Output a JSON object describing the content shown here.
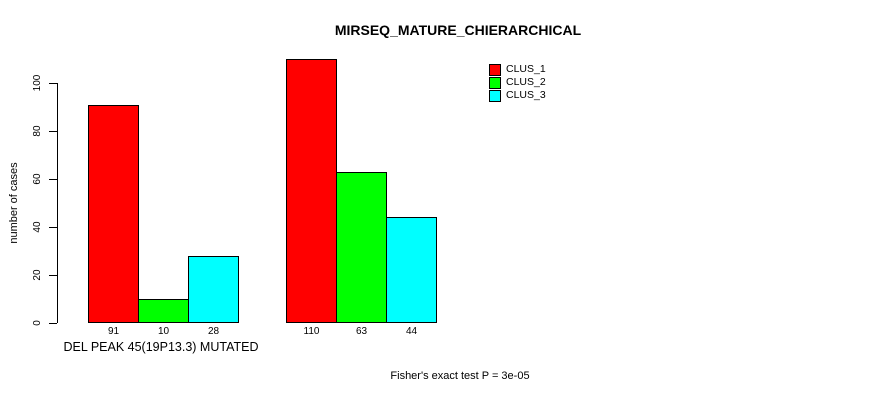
{
  "chart_data": {
    "type": "bar",
    "grouped": true,
    "title": "MIRSEQ_MATURE_CHIERARCHICAL",
    "ylabel": "number of cases",
    "categories": [
      "DEL PEAK 45(19P13.3) MUTATED",
      ""
    ],
    "series": [
      {
        "name": "CLUS_1",
        "color": "#FF0000",
        "values": [
          91,
          110
        ]
      },
      {
        "name": "CLUS_2",
        "color": "#00FF00",
        "values": [
          10,
          63
        ]
      },
      {
        "name": "CLUS_3",
        "color": "#00FFFF",
        "values": [
          28,
          44
        ]
      }
    ],
    "y_ticks": [
      0,
      20,
      40,
      60,
      80,
      100
    ],
    "ylim": [
      0,
      110
    ],
    "bar_value_labels": true,
    "grid": false,
    "legend_position": "top-right-inside",
    "annotation": "Fisher's exact test P = 3e-05"
  }
}
